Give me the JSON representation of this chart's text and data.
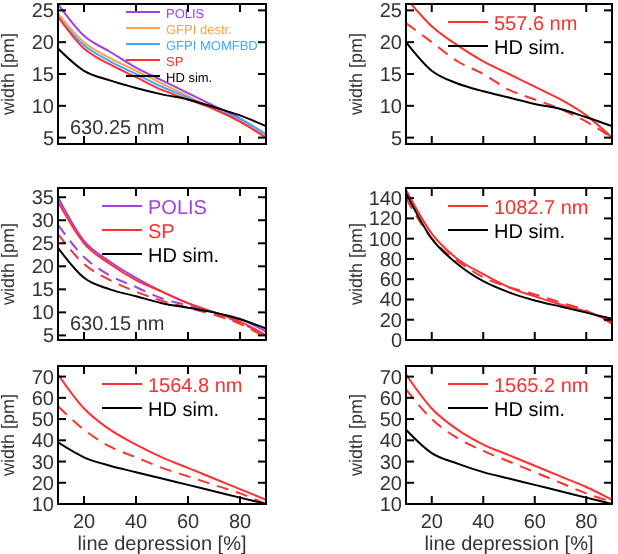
{
  "chart_data": [
    {
      "type": "line",
      "ylabel": "width [pm]",
      "annotations": [
        "630.25 nm"
      ],
      "x": [
        10,
        20,
        30,
        40,
        50,
        60,
        70,
        80,
        90
      ],
      "xlim": [
        10,
        90
      ],
      "xticks": [
        20,
        40,
        60,
        80
      ],
      "ylim": [
        4,
        26
      ],
      "yticks": [
        5,
        10,
        15,
        20,
        25
      ],
      "tick_labels": "y",
      "legend": "top right",
      "series": [
        {
          "name": "POLIS",
          "color": "#a040e0",
          "values": [
            26,
            21,
            18.5,
            16,
            14,
            12,
            10,
            8,
            5.5
          ]
        },
        {
          "name": "GFPI destr.",
          "color": "#ffa040",
          "values": [
            24.5,
            20,
            17.5,
            15.5,
            13.5,
            11.5,
            9.5,
            7.5,
            5
          ]
        },
        {
          "name": "GFPI MOMFBD",
          "color": "#40a8ff",
          "values": [
            24,
            19.5,
            17,
            15,
            13,
            11.3,
            9.5,
            7.9,
            5.5
          ]
        },
        {
          "name": "SP",
          "color": "#ff3030",
          "values": [
            24,
            19,
            16.5,
            14.5,
            12.5,
            11,
            9.5,
            7.5,
            5
          ]
        },
        {
          "name": "HD sim.",
          "color": "#000000",
          "values": [
            19,
            15.5,
            14,
            12.8,
            11.8,
            11,
            9.8,
            8.5,
            6.8
          ]
        }
      ]
    },
    {
      "type": "line",
      "ylabel": "width [pm]",
      "x": [
        10,
        20,
        30,
        40,
        50,
        60,
        70,
        80,
        90
      ],
      "xlim": [
        10,
        90
      ],
      "xticks": [
        20,
        40,
        60,
        80
      ],
      "ylim": [
        4,
        26
      ],
      "yticks": [
        5,
        10,
        15,
        20,
        25
      ],
      "tick_labels": "y",
      "legend": "top right",
      "series": [
        {
          "name": "557.6 nm",
          "color": "#ff3030",
          "x": [
            12,
            20,
            30,
            40,
            50,
            60,
            70,
            80,
            90
          ],
          "values": [
            26,
            22.5,
            19.5,
            17,
            15,
            13,
            11,
            8.5,
            5
          ]
        },
        {
          "color": "#ff3030",
          "line_style": "dashed",
          "values": [
            23,
            20,
            17,
            15,
            12.5,
            11,
            9.5,
            7.5,
            5
          ]
        },
        {
          "name": "HD sim.",
          "color": "#000000",
          "values": [
            20,
            15.5,
            13.5,
            12.3,
            11.3,
            10.3,
            9.5,
            8.2,
            6.8
          ]
        }
      ]
    },
    {
      "type": "line",
      "ylabel": "width [pm]",
      "annotations": [
        "630.15 nm"
      ],
      "x": [
        10,
        20,
        30,
        40,
        50,
        60,
        70,
        80,
        90
      ],
      "xlim": [
        10,
        90
      ],
      "xticks": [
        20,
        40,
        60,
        80
      ],
      "ylim": [
        4,
        37
      ],
      "yticks": [
        5,
        10,
        15,
        20,
        25,
        30,
        35
      ],
      "tick_labels": "y",
      "legend": "top right",
      "series": [
        {
          "name": "POLIS",
          "color": "#a040e0",
          "values": [
            35,
            25.5,
            21,
            17.5,
            14.5,
            12,
            10,
            8.6,
            5.8
          ]
        },
        {
          "color": "#a040e0",
          "line_style": "dashed",
          "values": [
            29,
            22,
            18,
            15.5,
            13,
            11.5,
            10,
            7.7,
            5.2
          ]
        },
        {
          "name": "SP",
          "color": "#ff3030",
          "values": [
            34,
            25,
            20.5,
            17,
            14.5,
            12,
            10,
            8,
            5
          ]
        },
        {
          "color": "#ff3030",
          "line_style": "dashed",
          "values": [
            27,
            20.5,
            17,
            14.5,
            12.5,
            11,
            9.5,
            7.5,
            4.5
          ]
        },
        {
          "name": "HD sim.",
          "color": "#000000",
          "values": [
            24,
            17.5,
            15,
            13.5,
            12,
            11,
            10,
            8.5,
            6.5
          ]
        }
      ]
    },
    {
      "type": "line",
      "ylabel": "width [pm]",
      "x": [
        10,
        20,
        30,
        40,
        50,
        60,
        70,
        80,
        90
      ],
      "xlim": [
        10,
        90
      ],
      "xticks": [
        20,
        40,
        60,
        80
      ],
      "ylim": [
        0,
        150
      ],
      "yticks": [
        0,
        20,
        40,
        60,
        80,
        100,
        120,
        140
      ],
      "tick_labels": "y",
      "legend": "top right",
      "series": [
        {
          "name": "1082.7 nm",
          "color": "#ff3030",
          "values": [
            148,
            105,
            80,
            65,
            52,
            43,
            35,
            28,
            18
          ]
        },
        {
          "color": "#ff3030",
          "line_style": "dashed",
          "values": [
            140,
            100,
            78,
            62,
            52,
            45,
            37,
            29,
            16
          ]
        },
        {
          "name": "HD sim.",
          "color": "#000000",
          "values": [
            145,
            100,
            75,
            58,
            47,
            39,
            33,
            27,
            21
          ]
        }
      ]
    },
    {
      "type": "line",
      "ylabel": "width [pm]",
      "xlabel": "line depression [%]",
      "x": [
        10,
        20,
        30,
        40,
        50,
        60,
        70,
        80,
        90
      ],
      "xlim": [
        10,
        90
      ],
      "xticks": [
        20,
        40,
        60,
        80
      ],
      "ylim": [
        10,
        75
      ],
      "yticks": [
        10,
        20,
        30,
        40,
        50,
        60,
        70
      ],
      "legend": "top right",
      "series": [
        {
          "name": "1564.8 nm",
          "color": "#ff3030",
          "values": [
            71,
            55,
            45,
            38,
            32,
            27,
            22,
            17,
            12
          ]
        },
        {
          "color": "#ff3030",
          "line_style": "dashed",
          "values": [
            56,
            45,
            37,
            32,
            27,
            23,
            19,
            15,
            10
          ]
        },
        {
          "name": "HD sim.",
          "color": "#000000",
          "values": [
            39,
            32,
            28,
            25,
            22,
            19,
            16,
            13,
            10
          ]
        }
      ]
    },
    {
      "type": "line",
      "ylabel": "width [pm]",
      "xlabel": "line depression [%]",
      "x": [
        10,
        20,
        30,
        40,
        50,
        60,
        70,
        80,
        90
      ],
      "xlim": [
        10,
        90
      ],
      "xticks": [
        20,
        40,
        60,
        80
      ],
      "ylim": [
        10,
        75
      ],
      "yticks": [
        10,
        20,
        30,
        40,
        50,
        60,
        70
      ],
      "legend": "top right",
      "series": [
        {
          "name": "1565.2 nm",
          "color": "#ff3030",
          "values": [
            71,
            55,
            45,
            38,
            33,
            28,
            23,
            18,
            12
          ]
        },
        {
          "color": "#ff3030",
          "line_style": "dashed",
          "values": [
            64,
            50,
            41,
            35,
            30,
            25,
            20,
            15,
            11
          ]
        },
        {
          "name": "HD sim.",
          "color": "#000000",
          "values": [
            45,
            34,
            29,
            25,
            22,
            19,
            16,
            13,
            10
          ]
        }
      ]
    }
  ]
}
